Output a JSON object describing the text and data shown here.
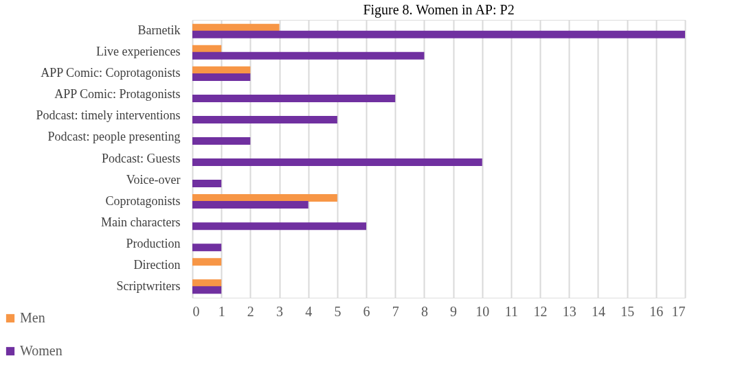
{
  "chart_data": {
    "type": "bar",
    "orientation": "horizontal",
    "title": "Figure 8. Women in AP: P2",
    "categories": [
      "Barnetik",
      "Live experiences",
      "APP Comic: Coprotagonists",
      "APP Comic: Protagonists",
      "Podcast: timely interventions",
      "Podcast: people presenting",
      "Podcast: Guests",
      "Voice-over",
      "Coprotagonists",
      "Main characters",
      "Production",
      "Direction",
      "Scriptwriters"
    ],
    "series": [
      {
        "name": "Men",
        "color": "#f79646",
        "values": [
          3,
          1,
          2,
          null,
          null,
          null,
          null,
          null,
          5,
          null,
          null,
          1,
          1
        ]
      },
      {
        "name": "Women",
        "color": "#7030a0",
        "values": [
          17,
          8,
          2,
          7,
          5,
          2,
          10,
          1,
          4,
          6,
          1,
          null,
          1
        ]
      }
    ],
    "xlim": [
      0,
      17
    ],
    "xticks": [
      0,
      1,
      2,
      3,
      4,
      5,
      6,
      7,
      8,
      9,
      10,
      11,
      12,
      13,
      14,
      15,
      16,
      17
    ],
    "grid": "x",
    "legend": "bottom left"
  }
}
